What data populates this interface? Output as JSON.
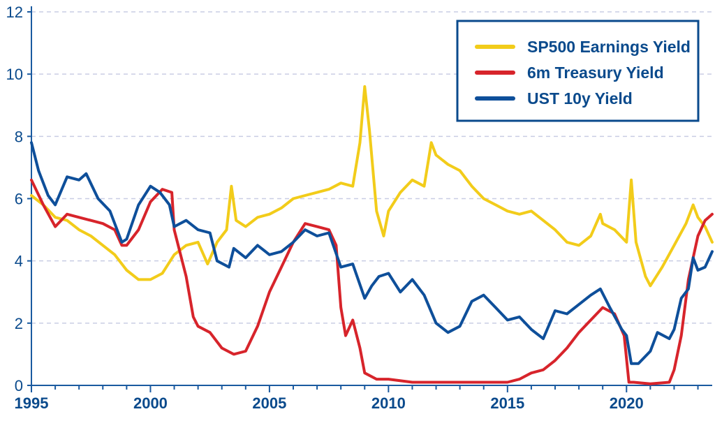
{
  "chart_data": {
    "type": "line",
    "title": "",
    "xlabel": "",
    "ylabel": "",
    "xlim": [
      1995.0,
      2023.6
    ],
    "ylim": [
      0,
      12
    ],
    "grid": "horizontal dashed",
    "legend_position": "top-right",
    "x_ticks": [
      "1995",
      "2000",
      "2005",
      "2010",
      "2015",
      "2020"
    ],
    "y_ticks": [
      "0",
      "2",
      "4",
      "6",
      "8",
      "10",
      "12"
    ],
    "colors": {
      "axis": "#1a5aa0",
      "grid": "#c9cde4",
      "legend_border": "#0a4a8c"
    },
    "series": [
      {
        "name": "SP500 Earnings Yield",
        "color": "#f2cc1a",
        "x": [
          1995.0,
          1995.5,
          1996.0,
          1996.5,
          1997.0,
          1997.5,
          1998.0,
          1998.5,
          1999.0,
          1999.5,
          2000.0,
          2000.5,
          2001.0,
          2001.5,
          2002.0,
          2002.4,
          2002.8,
          2003.2,
          2003.4,
          2003.6,
          2004.0,
          2004.5,
          2005.0,
          2005.5,
          2006.0,
          2006.5,
          2007.0,
          2007.5,
          2008.0,
          2008.5,
          2008.8,
          2009.0,
          2009.2,
          2009.5,
          2009.8,
          2010.0,
          2010.5,
          2011.0,
          2011.5,
          2011.8,
          2012.0,
          2012.5,
          2013.0,
          2013.5,
          2014.0,
          2014.5,
          2015.0,
          2015.5,
          2016.0,
          2016.5,
          2017.0,
          2017.5,
          2018.0,
          2018.5,
          2018.9,
          2019.0,
          2019.5,
          2020.0,
          2020.2,
          2020.4,
          2020.8,
          2021.0,
          2021.5,
          2022.0,
          2022.5,
          2022.8,
          2023.0,
          2023.3,
          2023.6
        ],
        "values": [
          6.1,
          5.8,
          5.4,
          5.3,
          5.0,
          4.8,
          4.5,
          4.2,
          3.7,
          3.4,
          3.4,
          3.6,
          4.2,
          4.5,
          4.6,
          3.9,
          4.6,
          5.0,
          6.4,
          5.3,
          5.1,
          5.4,
          5.5,
          5.7,
          6.0,
          6.1,
          6.2,
          6.3,
          6.5,
          6.4,
          7.8,
          9.6,
          8.2,
          5.6,
          4.8,
          5.6,
          6.2,
          6.6,
          6.4,
          7.8,
          7.4,
          7.1,
          6.9,
          6.4,
          6.0,
          5.8,
          5.6,
          5.5,
          5.6,
          5.3,
          5.0,
          4.6,
          4.5,
          4.8,
          5.5,
          5.2,
          5.0,
          4.6,
          6.6,
          4.6,
          3.5,
          3.2,
          3.8,
          4.5,
          5.2,
          5.8,
          5.4,
          5.1,
          4.6
        ]
      },
      {
        "name": "6m Treasury Yield",
        "color": "#d7242b",
        "x": [
          1995.0,
          1995.5,
          1996.0,
          1996.5,
          1997.0,
          1997.5,
          1998.0,
          1998.5,
          1998.8,
          1999.0,
          1999.5,
          2000.0,
          2000.5,
          2000.9,
          2001.0,
          2001.5,
          2001.8,
          2002.0,
          2002.5,
          2003.0,
          2003.5,
          2004.0,
          2004.5,
          2005.0,
          2005.5,
          2006.0,
          2006.5,
          2007.0,
          2007.5,
          2007.8,
          2008.0,
          2008.2,
          2008.5,
          2008.8,
          2009.0,
          2009.5,
          2010.0,
          2011.0,
          2012.0,
          2013.0,
          2014.0,
          2015.0,
          2015.5,
          2016.0,
          2016.5,
          2017.0,
          2017.5,
          2018.0,
          2018.5,
          2019.0,
          2019.5,
          2019.9,
          2020.1,
          2020.3,
          2021.0,
          2021.8,
          2022.0,
          2022.3,
          2022.6,
          2023.0,
          2023.3,
          2023.6
        ],
        "values": [
          6.6,
          5.8,
          5.1,
          5.5,
          5.4,
          5.3,
          5.2,
          5.0,
          4.5,
          4.5,
          5.0,
          5.9,
          6.3,
          6.2,
          5.0,
          3.5,
          2.2,
          1.9,
          1.7,
          1.2,
          1.0,
          1.1,
          1.9,
          3.0,
          3.8,
          4.6,
          5.2,
          5.1,
          5.0,
          4.5,
          2.5,
          1.6,
          2.1,
          1.2,
          0.4,
          0.2,
          0.2,
          0.1,
          0.1,
          0.1,
          0.1,
          0.1,
          0.2,
          0.4,
          0.5,
          0.8,
          1.2,
          1.7,
          2.1,
          2.5,
          2.3,
          1.6,
          0.1,
          0.1,
          0.05,
          0.1,
          0.5,
          1.6,
          3.4,
          4.8,
          5.3,
          5.5
        ]
      },
      {
        "name": "UST 10y Yield",
        "color": "#0e4f9a",
        "x": [
          1995.0,
          1995.3,
          1995.7,
          1996.0,
          1996.5,
          1997.0,
          1997.3,
          1997.8,
          1998.3,
          1998.8,
          1999.0,
          1999.5,
          2000.0,
          2000.4,
          2000.8,
          2001.0,
          2001.5,
          2002.0,
          2002.5,
          2002.8,
          2003.3,
          2003.5,
          2004.0,
          2004.5,
          2005.0,
          2005.5,
          2006.0,
          2006.5,
          2007.0,
          2007.5,
          2008.0,
          2008.5,
          2009.0,
          2009.3,
          2009.6,
          2010.0,
          2010.5,
          2011.0,
          2011.5,
          2012.0,
          2012.5,
          2013.0,
          2013.5,
          2014.0,
          2014.5,
          2015.0,
          2015.5,
          2016.0,
          2016.5,
          2017.0,
          2017.5,
          2018.0,
          2018.5,
          2018.9,
          2019.3,
          2019.8,
          2020.0,
          2020.2,
          2020.5,
          2021.0,
          2021.3,
          2021.8,
          2022.0,
          2022.3,
          2022.6,
          2022.8,
          2023.0,
          2023.3,
          2023.6
        ],
        "values": [
          7.8,
          6.9,
          6.1,
          5.8,
          6.7,
          6.6,
          6.8,
          6.0,
          5.6,
          4.6,
          4.7,
          5.8,
          6.4,
          6.2,
          5.8,
          5.1,
          5.3,
          5.0,
          4.9,
          4.0,
          3.8,
          4.4,
          4.1,
          4.5,
          4.2,
          4.3,
          4.6,
          5.0,
          4.8,
          4.9,
          3.8,
          3.9,
          2.8,
          3.2,
          3.5,
          3.6,
          3.0,
          3.4,
          2.9,
          2.0,
          1.7,
          1.9,
          2.7,
          2.9,
          2.5,
          2.1,
          2.2,
          1.8,
          1.5,
          2.4,
          2.3,
          2.6,
          2.9,
          3.1,
          2.5,
          1.8,
          1.6,
          0.7,
          0.7,
          1.1,
          1.7,
          1.5,
          1.8,
          2.8,
          3.1,
          4.1,
          3.7,
          3.8,
          4.3
        ]
      }
    ]
  }
}
